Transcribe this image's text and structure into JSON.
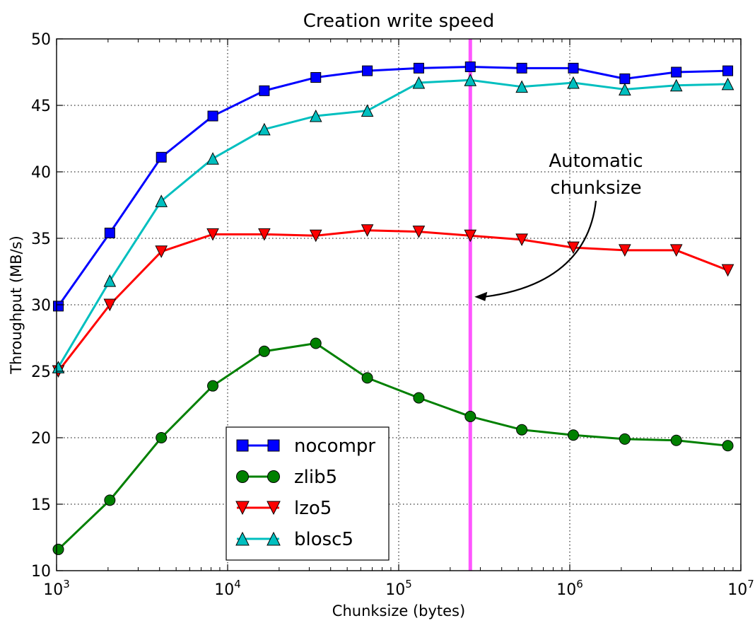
{
  "chart_data": {
    "type": "line",
    "title": "Creation write speed",
    "xlabel": "Chunksize (bytes)",
    "ylabel": "Throughput (MB/s)",
    "xscale": "log",
    "xlim": [
      1000,
      10000000
    ],
    "ylim": [
      10,
      50
    ],
    "grid": true,
    "legend_position": "lower-left",
    "x_ticks": [
      {
        "value": 1000,
        "base": "10",
        "exp": "3"
      },
      {
        "value": 10000,
        "base": "10",
        "exp": "4"
      },
      {
        "value": 100000,
        "base": "10",
        "exp": "5"
      },
      {
        "value": 1000000,
        "base": "10",
        "exp": "6"
      },
      {
        "value": 10000000,
        "base": "10",
        "exp": "7"
      }
    ],
    "y_ticks": [
      {
        "value": 10,
        "label": "10"
      },
      {
        "value": 15,
        "label": "15"
      },
      {
        "value": 20,
        "label": "20"
      },
      {
        "value": 25,
        "label": "25"
      },
      {
        "value": 30,
        "label": "30"
      },
      {
        "value": 35,
        "label": "35"
      },
      {
        "value": 40,
        "label": "40"
      },
      {
        "value": 45,
        "label": "45"
      },
      {
        "value": 50,
        "label": "50"
      }
    ],
    "x": [
      1024,
      2048,
      4096,
      8192,
      16384,
      32768,
      65536,
      131072,
      262144,
      524288,
      1048576,
      2097152,
      4194304,
      8388608
    ],
    "series": [
      {
        "name": "nocompr",
        "color": "#0000ff",
        "marker": "square",
        "values": [
          29.9,
          35.4,
          41.1,
          44.2,
          46.1,
          47.1,
          47.6,
          47.8,
          47.9,
          47.8,
          47.8,
          47.0,
          47.5,
          47.6
        ]
      },
      {
        "name": "zlib5",
        "color": "#008000",
        "marker": "circle",
        "values": [
          11.6,
          15.3,
          20.0,
          23.9,
          26.5,
          27.1,
          24.5,
          23.0,
          21.6,
          20.6,
          20.2,
          19.9,
          19.8,
          19.4
        ]
      },
      {
        "name": "lzo5",
        "color": "#ff0000",
        "marker": "triangle-down",
        "values": [
          25.0,
          30.0,
          34.0,
          35.3,
          35.3,
          35.2,
          35.6,
          35.5,
          35.2,
          34.9,
          34.3,
          34.1,
          34.1,
          32.6
        ]
      },
      {
        "name": "blosc5",
        "color": "#00bfbf",
        "marker": "triangle-up",
        "values": [
          25.3,
          31.8,
          37.8,
          41.0,
          43.2,
          44.2,
          44.6,
          46.7,
          46.9,
          46.4,
          46.7,
          46.2,
          46.5,
          46.6
        ]
      }
    ],
    "vline": {
      "x": 262144,
      "color": "#ff55ff"
    },
    "annotation": {
      "lines": [
        "Automatic",
        "chunksize"
      ],
      "target": {
        "x": 262144,
        "y": 30.6
      }
    }
  }
}
